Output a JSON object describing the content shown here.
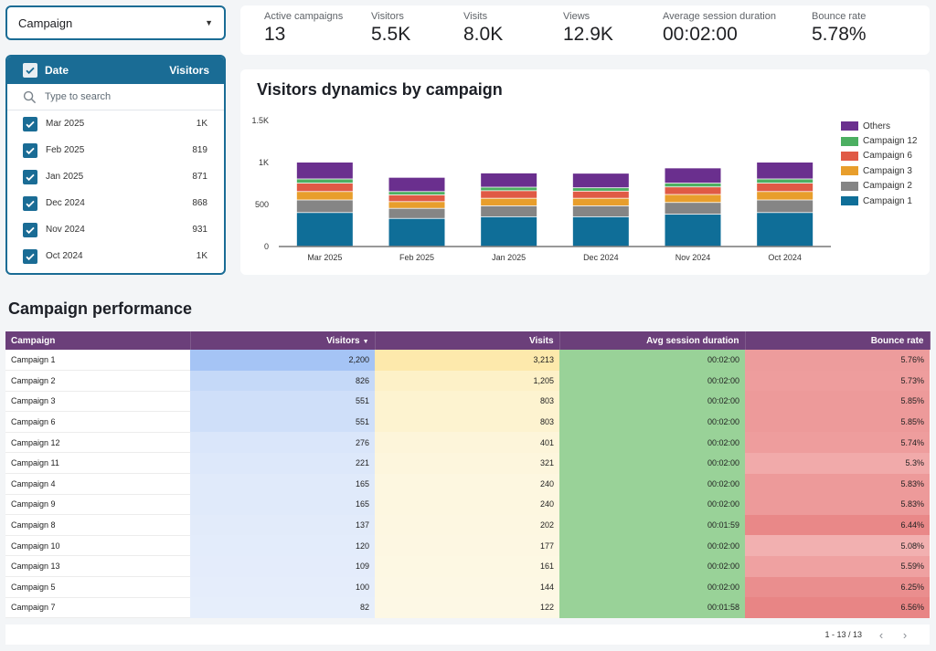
{
  "filter": {
    "campaign_label": "Campaign"
  },
  "date_filter": {
    "header_label": "Date",
    "header_metric": "Visitors",
    "search_placeholder": "Type to search",
    "items": [
      {
        "label": "Mar 2025",
        "value": "1K"
      },
      {
        "label": "Feb 2025",
        "value": "819"
      },
      {
        "label": "Jan 2025",
        "value": "871"
      },
      {
        "label": "Dec 2024",
        "value": "868"
      },
      {
        "label": "Nov 2024",
        "value": "931"
      },
      {
        "label": "Oct 2024",
        "value": "1K"
      }
    ]
  },
  "kpis": [
    {
      "label": "Active campaigns",
      "value": "13"
    },
    {
      "label": "Visitors",
      "value": "5.5K"
    },
    {
      "label": "Visits",
      "value": "8.0K"
    },
    {
      "label": "Views",
      "value": "12.9K"
    },
    {
      "label": "Average session duration",
      "value": "00:02:00"
    },
    {
      "label": "Bounce rate",
      "value": "5.78%"
    }
  ],
  "colors": {
    "accent": "#1a6c95",
    "table_header": "#6b3f7a",
    "campaign_1": "#0f6e98",
    "campaign_2": "#858585",
    "campaign_3": "#e89e2c",
    "campaign_6": "#e05a45",
    "campaign_12": "#4caf61",
    "others": "#6a2f8e"
  },
  "chart_data": {
    "type": "bar",
    "stacked": true,
    "title": "Visitors dynamics by campaign",
    "categories": [
      "Mar 2025",
      "Feb 2025",
      "Jan 2025",
      "Dec 2024",
      "Nov 2024",
      "Oct 2024"
    ],
    "ylim": [
      0,
      1500
    ],
    "yticks": [
      0,
      500,
      1000,
      1500
    ],
    "ytick_labels": [
      "0",
      "500",
      "1K",
      "1.5K"
    ],
    "legend_position": "right",
    "legend_order": [
      "Others",
      "Campaign 12",
      "Campaign 6",
      "Campaign 3",
      "Campaign 2",
      "Campaign 1"
    ],
    "series": [
      {
        "name": "Campaign 1",
        "color": "#0f6e98",
        "values": [
          400,
          330,
          350,
          350,
          380,
          400
        ]
      },
      {
        "name": "Campaign 2",
        "color": "#858585",
        "values": [
          150,
          120,
          130,
          130,
          140,
          150
        ]
      },
      {
        "name": "Campaign 3",
        "color": "#e89e2c",
        "values": [
          100,
          80,
          90,
          90,
          95,
          100
        ]
      },
      {
        "name": "Campaign 6",
        "color": "#e05a45",
        "values": [
          100,
          80,
          90,
          85,
          90,
          100
        ]
      },
      {
        "name": "Campaign 12",
        "color": "#4caf61",
        "values": [
          50,
          40,
          42,
          40,
          45,
          50
        ]
      },
      {
        "name": "Others",
        "color": "#6a2f8e",
        "values": [
          200,
          169,
          169,
          173,
          181,
          200
        ]
      }
    ]
  },
  "table": {
    "title": "Campaign performance",
    "columns": [
      "Campaign",
      "Visitors",
      "Visits",
      "Avg session duration",
      "Bounce rate"
    ],
    "rows": [
      {
        "campaign": "Campaign 1",
        "visitors": "2,200",
        "visits": "3,213",
        "duration": "00:02:00",
        "bounce": "5.76%"
      },
      {
        "campaign": "Campaign 2",
        "visitors": "826",
        "visits": "1,205",
        "duration": "00:02:00",
        "bounce": "5.73%"
      },
      {
        "campaign": "Campaign 3",
        "visitors": "551",
        "visits": "803",
        "duration": "00:02:00",
        "bounce": "5.85%"
      },
      {
        "campaign": "Campaign 6",
        "visitors": "551",
        "visits": "803",
        "duration": "00:02:00",
        "bounce": "5.85%"
      },
      {
        "campaign": "Campaign 12",
        "visitors": "276",
        "visits": "401",
        "duration": "00:02:00",
        "bounce": "5.74%"
      },
      {
        "campaign": "Campaign 11",
        "visitors": "221",
        "visits": "321",
        "duration": "00:02:00",
        "bounce": "5.3%"
      },
      {
        "campaign": "Campaign 4",
        "visitors": "165",
        "visits": "240",
        "duration": "00:02:00",
        "bounce": "5.83%"
      },
      {
        "campaign": "Campaign 9",
        "visitors": "165",
        "visits": "240",
        "duration": "00:02:00",
        "bounce": "5.83%"
      },
      {
        "campaign": "Campaign 8",
        "visitors": "137",
        "visits": "202",
        "duration": "00:01:59",
        "bounce": "6.44%"
      },
      {
        "campaign": "Campaign 10",
        "visitors": "120",
        "visits": "177",
        "duration": "00:02:00",
        "bounce": "5.08%"
      },
      {
        "campaign": "Campaign 13",
        "visitors": "109",
        "visits": "161",
        "duration": "00:02:00",
        "bounce": "5.59%"
      },
      {
        "campaign": "Campaign 5",
        "visitors": "100",
        "visits": "144",
        "duration": "00:02:00",
        "bounce": "6.25%"
      },
      {
        "campaign": "Campaign 7",
        "visitors": "82",
        "visits": "122",
        "duration": "00:01:58",
        "bounce": "6.56%"
      }
    ]
  },
  "pagination": {
    "range": "1 - 13 / 13",
    "prev_icon": "chevron-left-icon",
    "next_icon": "chevron-right-icon"
  }
}
